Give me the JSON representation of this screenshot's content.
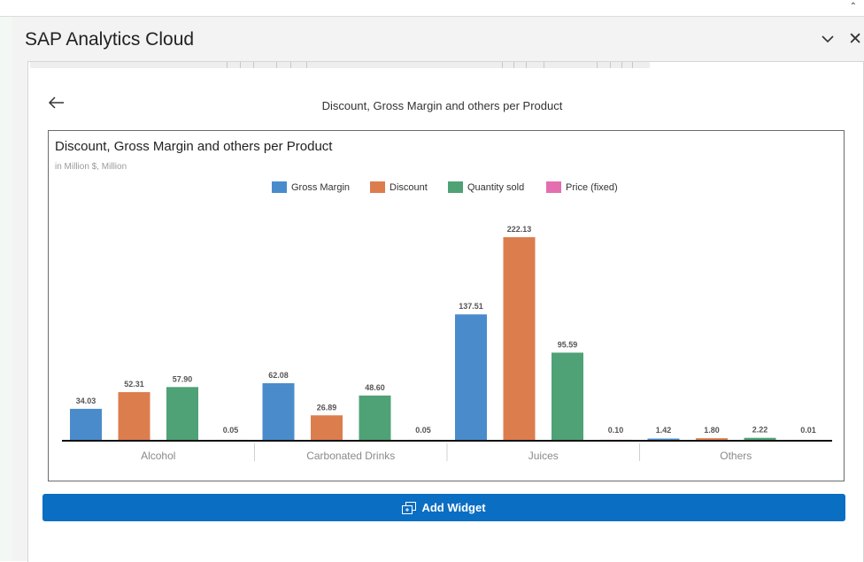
{
  "window": {
    "title": "SAP Analytics Cloud"
  },
  "header": {
    "title": "Discount, Gross Margin and others per Product"
  },
  "widget": {
    "title": "Discount, Gross Margin and others per Product",
    "subtitle": "in Million $, Million"
  },
  "actions": {
    "add_widget_label": "Add Widget"
  },
  "icons": {
    "back": "arrow-left-icon",
    "collapse": "chevron-down-icon",
    "close": "close-icon",
    "add": "add-widget-icon",
    "expand": "caret-up-icon"
  },
  "colors": {
    "accent": "#0a6ec3"
  },
  "chart_data": {
    "type": "bar",
    "title": "Discount, Gross Margin and others per Product",
    "subtitle": "in Million $, Million",
    "categories": [
      "Alcohol",
      "Carbonated Drinks",
      "Juices",
      "Others"
    ],
    "series": [
      {
        "name": "Gross Margin",
        "color": "#4a8ccb",
        "values": [
          34.03,
          62.08,
          137.51,
          1.42
        ]
      },
      {
        "name": "Discount",
        "color": "#dc7d4e",
        "values": [
          52.31,
          26.89,
          222.13,
          1.8
        ]
      },
      {
        "name": "Quantity sold",
        "color": "#4fa176",
        "values": [
          57.9,
          48.6,
          95.59,
          2.22
        ]
      },
      {
        "name": "Price (fixed)",
        "color": "#e36fb1",
        "values": [
          0.05,
          0.05,
          0.1,
          0.01
        ]
      }
    ],
    "legend": "top",
    "grid": false,
    "ylim": [
      0,
      222.13
    ]
  }
}
